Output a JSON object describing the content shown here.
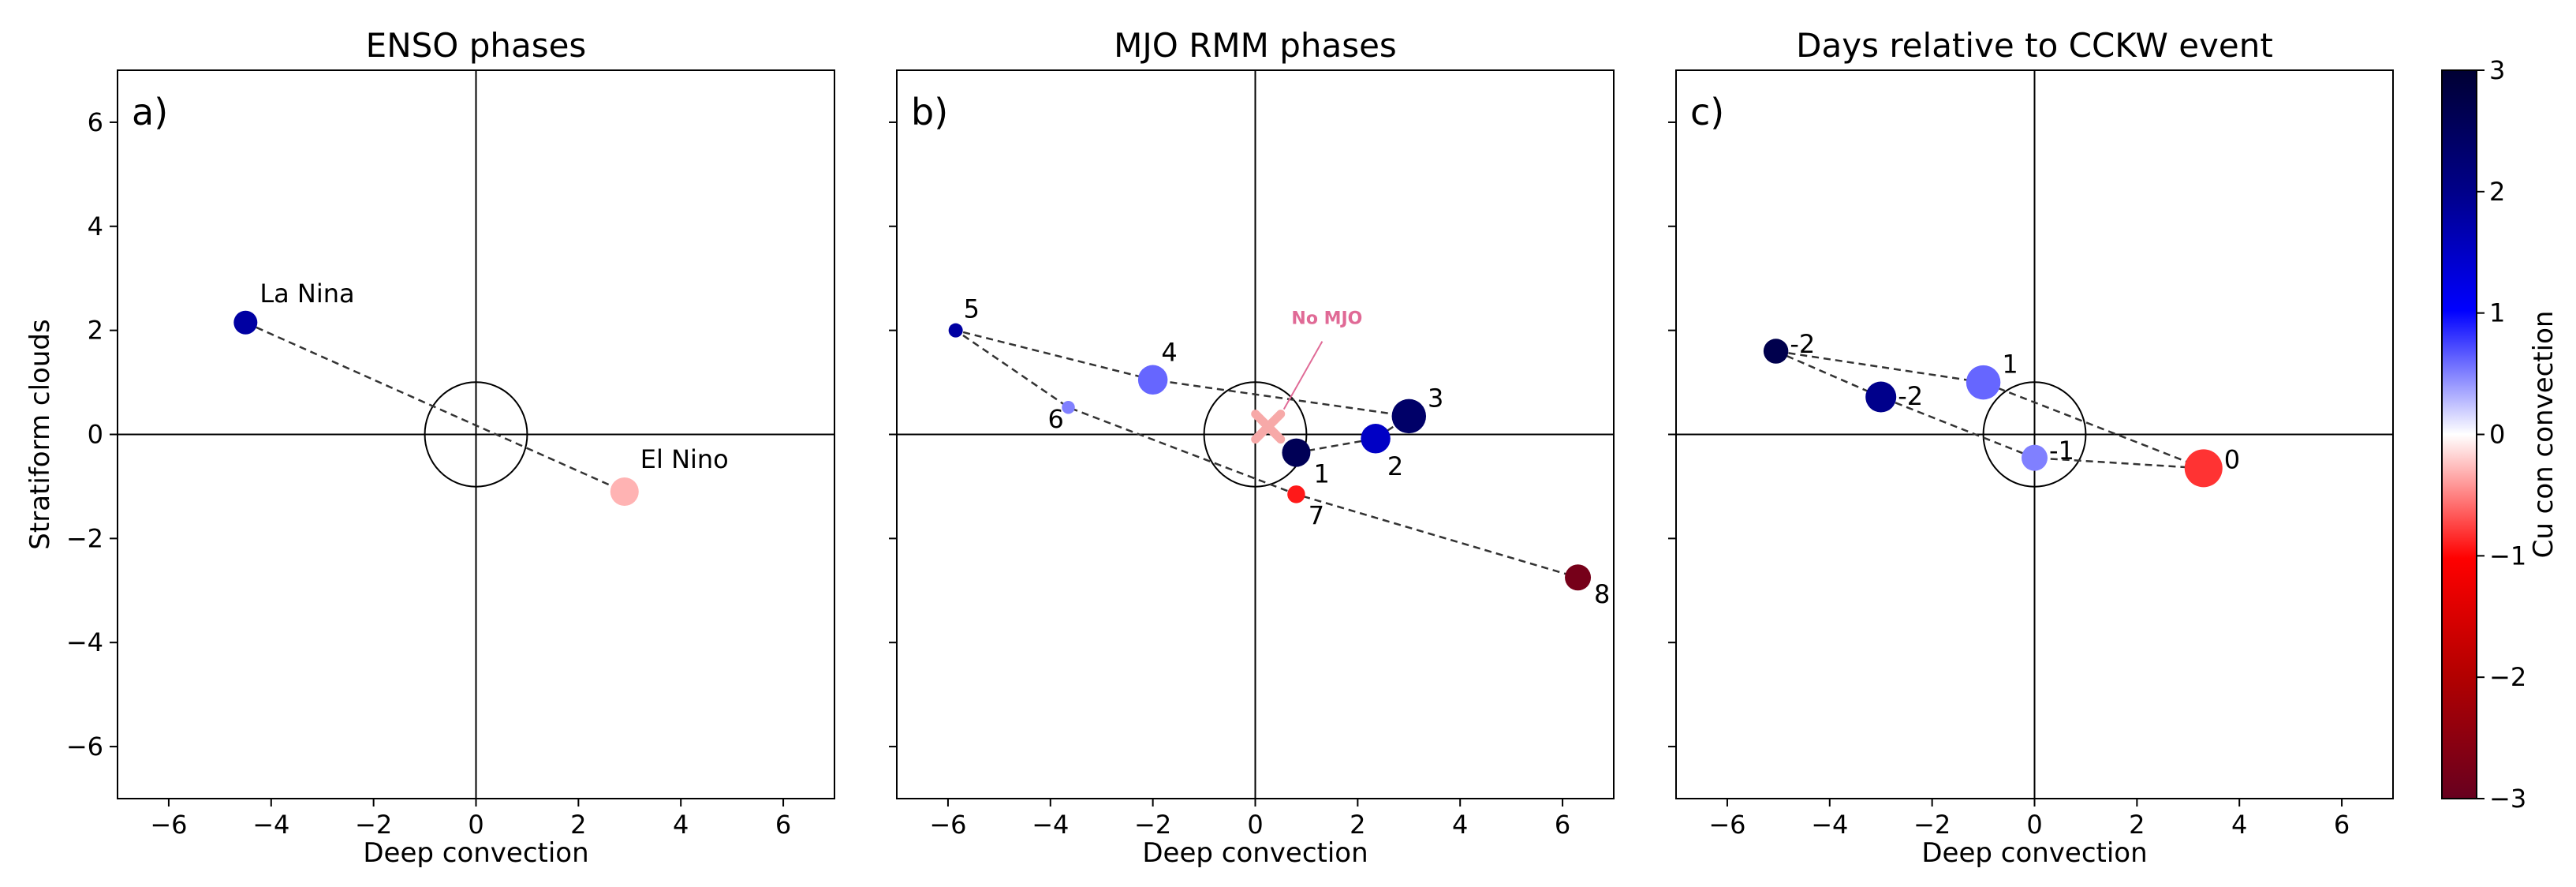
{
  "chart_data": [
    {
      "panel": "a",
      "type": "scatter",
      "title": "ENSO phases",
      "panel_label": "a)",
      "xlabel": "Deep convection",
      "ylabel": "Stratiform clouds",
      "xlim": [
        -7,
        7
      ],
      "ylim": [
        -7,
        7
      ],
      "xticks": [
        -6,
        -4,
        -2,
        0,
        2,
        4,
        6
      ],
      "yticks": [
        -6,
        -4,
        -2,
        0,
        2,
        4,
        6
      ],
      "xtick_labels": [
        "−6",
        "−4",
        "−2",
        "0",
        "2",
        "4",
        "6"
      ],
      "ytick_labels": [
        "−6",
        "−4",
        "−2",
        "0",
        "2",
        "4",
        "6"
      ],
      "origin_circle_radius": 1,
      "points": [
        {
          "label": "La Nina",
          "x": -4.5,
          "y": 2.15,
          "c": 1.8,
          "s": 1.0
        },
        {
          "label": "El Nino",
          "x": 2.9,
          "y": -1.1,
          "c": -0.3,
          "s": 1.2
        }
      ],
      "path": [
        "La Nina",
        "El Nino"
      ]
    },
    {
      "panel": "b",
      "type": "scatter",
      "title": "MJO RMM phases",
      "panel_label": "b)",
      "xlabel": "Deep convection",
      "xlim": [
        -7,
        7
      ],
      "ylim": [
        -7,
        7
      ],
      "xticks": [
        -6,
        -4,
        -2,
        0,
        2,
        4,
        6
      ],
      "yticks": [
        -6,
        -4,
        -2,
        0,
        2,
        4,
        6
      ],
      "xtick_labels": [
        "−6",
        "−4",
        "−2",
        "0",
        "2",
        "4",
        "6"
      ],
      "origin_circle_radius": 1,
      "points": [
        {
          "label": "1",
          "x": 0.8,
          "y": -0.35,
          "c": 2.6,
          "s": 1.2
        },
        {
          "label": "2",
          "x": 2.35,
          "y": -0.08,
          "c": 1.5,
          "s": 1.25
        },
        {
          "label": "3",
          "x": 3.0,
          "y": 0.35,
          "c": 2.4,
          "s": 1.45
        },
        {
          "label": "4",
          "x": -2.0,
          "y": 1.05,
          "c": 0.6,
          "s": 1.25
        },
        {
          "label": "5",
          "x": -5.85,
          "y": 2.0,
          "c": 1.8,
          "s": 0.6
        },
        {
          "label": "6",
          "x": -3.65,
          "y": 0.52,
          "c": 0.5,
          "s": 0.55
        },
        {
          "label": "7",
          "x": 0.8,
          "y": -1.15,
          "c": -0.9,
          "s": 0.75
        },
        {
          "label": "8",
          "x": 6.3,
          "y": -2.75,
          "c": -2.8,
          "s": 1.1
        }
      ],
      "path": [
        "1",
        "2",
        "3",
        "4",
        "5",
        "6",
        "7",
        "8"
      ],
      "annotation": {
        "text": "No MJO",
        "marker": "x",
        "x": 0.25,
        "y": 0.15,
        "text_x": 1.4,
        "text_y": 2.0,
        "color": "#e06a96",
        "marker_color": "#f7a9a8"
      }
    },
    {
      "panel": "c",
      "type": "scatter",
      "title": "Days relative to CCKW event",
      "panel_label": "c)",
      "xlabel": "Deep convection",
      "xlim": [
        -7,
        7
      ],
      "ylim": [
        -7,
        7
      ],
      "xticks": [
        -6,
        -4,
        -2,
        0,
        2,
        4,
        6
      ],
      "yticks": [
        -6,
        -4,
        -2,
        0,
        2,
        4,
        6
      ],
      "xtick_labels": [
        "−6",
        "−4",
        "−2",
        "0",
        "2",
        "4",
        "6"
      ],
      "origin_circle_radius": 1,
      "points": [
        {
          "label": "-2",
          "x": -5.05,
          "y": 1.6,
          "c": 2.7,
          "s": 1.05
        },
        {
          "label": "-2",
          "x": -3.0,
          "y": 0.72,
          "c": 2.0,
          "s": 1.3
        },
        {
          "label": "-1",
          "x": 0.0,
          "y": -0.45,
          "c": 0.5,
          "s": 1.1
        },
        {
          "label": "0",
          "x": 3.3,
          "y": -0.65,
          "c": -0.8,
          "s": 1.6
        },
        {
          "label": "1",
          "x": -1.0,
          "y": 1.0,
          "c": 0.6,
          "s": 1.45
        }
      ],
      "path": [
        "-2",
        "-2",
        "-1",
        "0",
        "1",
        "-2"
      ]
    }
  ],
  "colorbar": {
    "label": "Cu con convection",
    "range": [
      -3,
      3
    ],
    "ticks": [
      3,
      2,
      1,
      0,
      -1,
      -2,
      -3
    ],
    "tick_labels": [
      "3",
      "2",
      "1",
      "0",
      "−1",
      "−2",
      "−3"
    ],
    "colors": {
      "low": "#67001f",
      "mid_low": "#ff0000",
      "center": "#ffffff",
      "mid_high": "#0000ff",
      "high": "#000033"
    }
  }
}
